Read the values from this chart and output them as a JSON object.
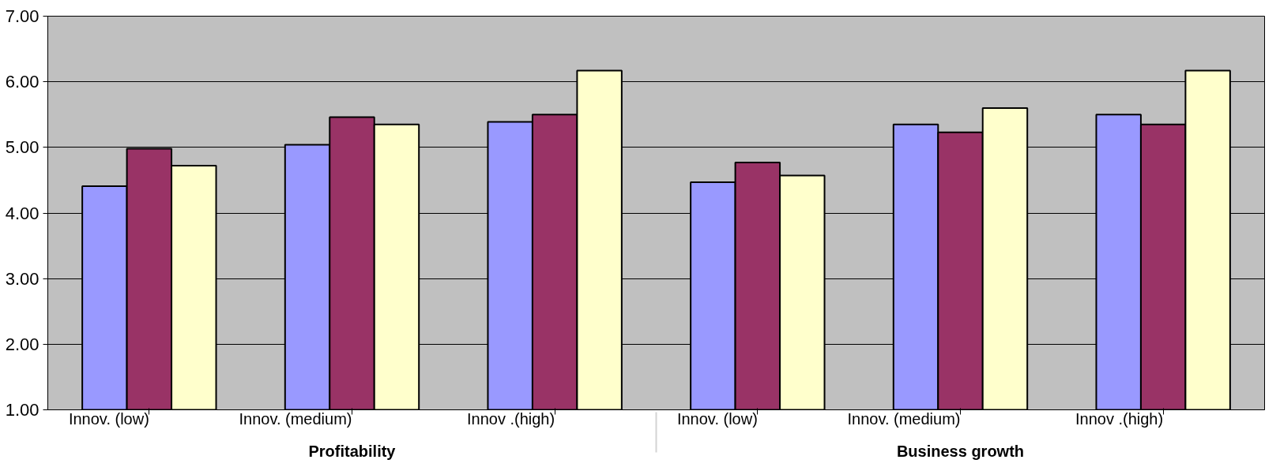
{
  "chart_data": {
    "type": "bar",
    "categories": [
      "Innov. (low)",
      "Innov. (medium)",
      "Innov .(high)",
      "Innov. (low)",
      "Innov. (medium)",
      "Innov .(high)"
    ],
    "annotations": [
      "Profitability",
      "Business growth"
    ],
    "series": [
      {
        "color": "#9999ff",
        "values": [
          4.41,
          5.04,
          5.39,
          4.47,
          5.35,
          5.5
        ]
      },
      {
        "color": "#993366",
        "values": [
          4.98,
          5.46,
          5.5,
          4.77,
          5.23,
          5.35
        ]
      },
      {
        "color": "#ffffcc",
        "values": [
          4.72,
          5.35,
          6.17,
          4.57,
          5.6,
          6.17
        ]
      }
    ],
    "ylim": [
      1,
      7
    ],
    "yticks": [
      {
        "value": 1,
        "label": "1.00"
      },
      {
        "value": 2,
        "label": "2.00"
      },
      {
        "value": 3,
        "label": "3.00"
      },
      {
        "value": 4,
        "label": "4.00"
      },
      {
        "value": 5,
        "label": "5.00"
      },
      {
        "value": 6,
        "label": "6.00"
      },
      {
        "value": 7,
        "label": "7.00"
      }
    ],
    "grid": "y"
  }
}
